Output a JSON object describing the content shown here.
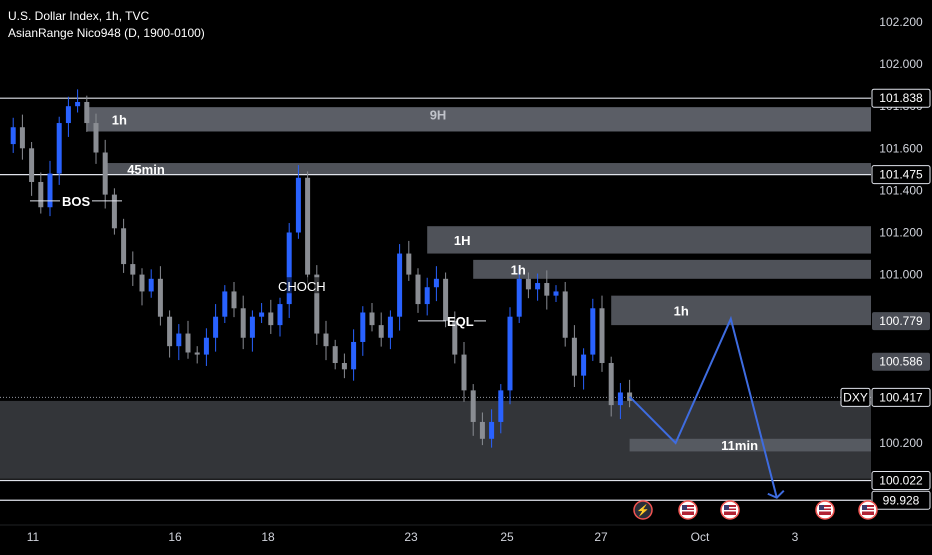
{
  "legend": {
    "symbol_line": "U.S. Dollar Index, 1h, TVC",
    "indicator_line": "AsianRange Nico948 (D, 1900-0100)"
  },
  "colors": {
    "background": "#000000",
    "candle_up": "#2962ff",
    "candle_down": "#8a8d93",
    "zone_fill": "#5d6068",
    "projection": "#3e6ce0",
    "axis_text": "#d1d4dc"
  },
  "chart_data": {
    "type": "candlestick",
    "symbol": "DXY",
    "timeframe": "1h",
    "ylim": [
      99.85,
      102.35
    ],
    "y_ticks": [
      "102.200",
      "102.000",
      "101.800",
      "101.600",
      "101.400",
      "101.200",
      "101.000",
      "100.200"
    ],
    "x_ticks": [
      "11",
      "16",
      "18",
      "23",
      "25",
      "27",
      "Oct",
      "3"
    ],
    "price_path": [
      {
        "x": 0,
        "y": 101.62
      },
      {
        "x": 1,
        "y": 101.7
      },
      {
        "x": 2,
        "y": 101.6
      },
      {
        "x": 3,
        "y": 101.44
      },
      {
        "x": 4,
        "y": 101.32
      },
      {
        "x": 5,
        "y": 101.48
      },
      {
        "x": 6,
        "y": 101.72
      },
      {
        "x": 7,
        "y": 101.8
      },
      {
        "x": 8,
        "y": 101.82
      },
      {
        "x": 9,
        "y": 101.72
      },
      {
        "x": 10,
        "y": 101.58
      },
      {
        "x": 11,
        "y": 101.38
      },
      {
        "x": 12,
        "y": 101.22
      },
      {
        "x": 13,
        "y": 101.05
      },
      {
        "x": 14,
        "y": 101.0
      },
      {
        "x": 15,
        "y": 100.92
      },
      {
        "x": 16,
        "y": 100.98
      },
      {
        "x": 17,
        "y": 100.8
      },
      {
        "x": 18,
        "y": 100.66
      },
      {
        "x": 19,
        "y": 100.72
      },
      {
        "x": 20,
        "y": 100.63
      },
      {
        "x": 21,
        "y": 100.62
      },
      {
        "x": 22,
        "y": 100.7
      },
      {
        "x": 23,
        "y": 100.8
      },
      {
        "x": 24,
        "y": 100.92
      },
      {
        "x": 25,
        "y": 100.84
      },
      {
        "x": 26,
        "y": 100.7
      },
      {
        "x": 27,
        "y": 100.8
      },
      {
        "x": 28,
        "y": 100.82
      },
      {
        "x": 29,
        "y": 100.76
      },
      {
        "x": 30,
        "y": 100.86
      },
      {
        "x": 31,
        "y": 101.2
      },
      {
        "x": 32,
        "y": 101.46
      },
      {
        "x": 33,
        "y": 101.0
      },
      {
        "x": 34,
        "y": 100.72
      },
      {
        "x": 35,
        "y": 100.66
      },
      {
        "x": 36,
        "y": 100.58
      },
      {
        "x": 37,
        "y": 100.55
      },
      {
        "x": 38,
        "y": 100.68
      },
      {
        "x": 39,
        "y": 100.82
      },
      {
        "x": 40,
        "y": 100.76
      },
      {
        "x": 41,
        "y": 100.7
      },
      {
        "x": 42,
        "y": 100.8
      },
      {
        "x": 43,
        "y": 101.1
      },
      {
        "x": 44,
        "y": 101.0
      },
      {
        "x": 45,
        "y": 100.86
      },
      {
        "x": 46,
        "y": 100.94
      },
      {
        "x": 47,
        "y": 100.98
      },
      {
        "x": 48,
        "y": 100.78
      },
      {
        "x": 49,
        "y": 100.62
      },
      {
        "x": 50,
        "y": 100.45
      },
      {
        "x": 51,
        "y": 100.3
      },
      {
        "x": 52,
        "y": 100.22
      },
      {
        "x": 53,
        "y": 100.3
      },
      {
        "x": 54,
        "y": 100.45
      },
      {
        "x": 55,
        "y": 100.8
      },
      {
        "x": 56,
        "y": 100.98
      },
      {
        "x": 57,
        "y": 100.93
      },
      {
        "x": 58,
        "y": 100.96
      },
      {
        "x": 59,
        "y": 100.9
      },
      {
        "x": 60,
        "y": 100.92
      },
      {
        "x": 61,
        "y": 100.7
      },
      {
        "x": 62,
        "y": 100.52
      },
      {
        "x": 63,
        "y": 100.62
      },
      {
        "x": 64,
        "y": 100.84
      },
      {
        "x": 65,
        "y": 100.58
      },
      {
        "x": 66,
        "y": 100.38
      },
      {
        "x": 67,
        "y": 100.44
      },
      {
        "x": 68,
        "y": 100.4
      }
    ],
    "projection": [
      {
        "x": 68,
        "y": 100.42
      },
      {
        "x": 73,
        "y": 100.2
      },
      {
        "x": 79,
        "y": 100.79
      },
      {
        "x": 84,
        "y": 99.94
      }
    ],
    "zones": [
      {
        "label": "9H",
        "y_top": 101.795,
        "y_bottom": 101.68,
        "x_start": 9
      },
      {
        "label": "1h",
        "y_top": 101.795,
        "y_bottom": 101.68,
        "x_start": 9
      },
      {
        "label": "45min",
        "y_top": 101.53,
        "y_bottom": 101.475,
        "x_start": 11
      },
      {
        "label": "1H",
        "y_top": 101.23,
        "y_bottom": 101.1,
        "x_start": 46
      },
      {
        "label": "1h",
        "y_top": 101.07,
        "y_bottom": 100.98,
        "x_start": 51
      },
      {
        "label": "1h",
        "y_top": 100.9,
        "y_bottom": 100.76,
        "x_start": 66
      },
      {
        "label": "11min",
        "y_top": 100.22,
        "y_bottom": 100.16,
        "x_start": 68
      },
      {
        "label": "",
        "y_top": 100.4,
        "y_bottom": 100.03,
        "x_start": -1
      }
    ],
    "horizontal_lines": [
      101.838,
      101.475,
      100.417,
      100.022,
      99.928
    ],
    "annotations": [
      {
        "text": "BOS",
        "x": 7,
        "y": 101.35
      },
      {
        "text": "CHOCH",
        "x": 31,
        "y": 100.94
      },
      {
        "text": "EQL",
        "x": 49,
        "y": 100.78
      }
    ],
    "price_labels": [
      {
        "value": "101.838",
        "style": "outline"
      },
      {
        "value": "101.475",
        "style": "outline"
      },
      {
        "value": "100.779",
        "style": "filled"
      },
      {
        "value": "100.586",
        "style": "filled"
      },
      {
        "value": "100.417",
        "style": "outline",
        "tag": "DXY"
      },
      {
        "value": "100.022",
        "style": "outline"
      },
      {
        "value": "99.928",
        "style": "outline"
      }
    ],
    "event_icons": [
      {
        "type": "lightning",
        "x": 69
      },
      {
        "type": "us-flag",
        "x": 74
      },
      {
        "type": "us-flag",
        "x": 78
      },
      {
        "type": "us-flag",
        "x": 88
      },
      {
        "type": "us-flag",
        "x": 93
      }
    ]
  }
}
